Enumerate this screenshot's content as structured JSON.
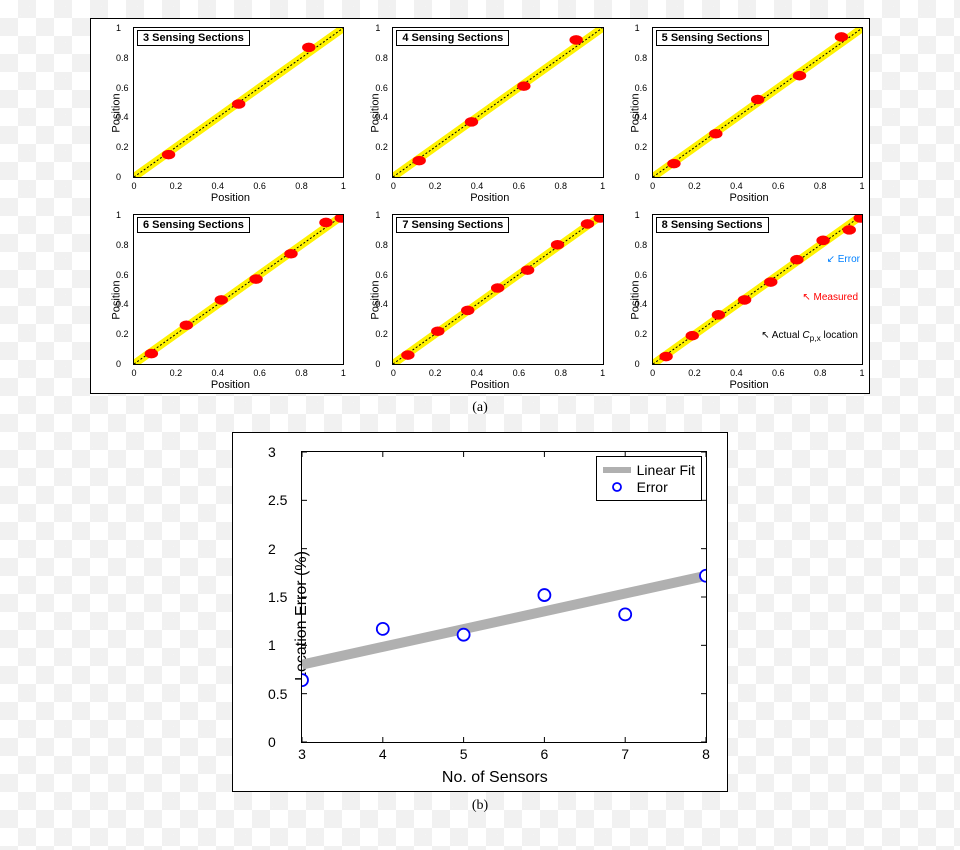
{
  "panel_a": {
    "type": "scatter-grid",
    "rows": 2,
    "cols": 3,
    "subplots": [
      {
        "title": "3 Sensing Sections",
        "points": [
          [
            0.165,
            0.15
          ],
          [
            0.5,
            0.49
          ],
          [
            0.835,
            0.87
          ]
        ]
      },
      {
        "title": "4 Sensing Sections",
        "points": [
          [
            0.125,
            0.11
          ],
          [
            0.375,
            0.37
          ],
          [
            0.625,
            0.61
          ],
          [
            0.875,
            0.92
          ]
        ]
      },
      {
        "title": "5 Sensing Sections",
        "points": [
          [
            0.1,
            0.09
          ],
          [
            0.3,
            0.29
          ],
          [
            0.5,
            0.52
          ],
          [
            0.7,
            0.68
          ],
          [
            0.9,
            0.94
          ]
        ]
      },
      {
        "title": "6 Sensing Sections",
        "points": [
          [
            0.083,
            0.07
          ],
          [
            0.25,
            0.26
          ],
          [
            0.417,
            0.43
          ],
          [
            0.583,
            0.57
          ],
          [
            0.75,
            0.74
          ],
          [
            0.917,
            0.95
          ],
          [
            0.99,
            0.98
          ]
        ]
      },
      {
        "title": "7 Sensing Sections",
        "points": [
          [
            0.071,
            0.06
          ],
          [
            0.214,
            0.22
          ],
          [
            0.357,
            0.36
          ],
          [
            0.5,
            0.51
          ],
          [
            0.643,
            0.63
          ],
          [
            0.786,
            0.8
          ],
          [
            0.929,
            0.94
          ],
          [
            0.99,
            0.98
          ]
        ]
      },
      {
        "title": "8 Sensing Sections",
        "points": [
          [
            0.0625,
            0.05
          ],
          [
            0.1875,
            0.19
          ],
          [
            0.3125,
            0.33
          ],
          [
            0.4375,
            0.43
          ],
          [
            0.5625,
            0.55
          ],
          [
            0.6875,
            0.7
          ],
          [
            0.8125,
            0.83
          ],
          [
            0.9375,
            0.9
          ],
          [
            0.99,
            0.98
          ]
        ],
        "has_annotations": true
      }
    ],
    "xlim": [
      0,
      1
    ],
    "ylim": [
      0,
      1
    ],
    "xticks": [
      0,
      0.2,
      0.4,
      0.6,
      0.8,
      1
    ],
    "yticks": [
      0,
      0.2,
      0.4,
      0.6,
      0.8,
      1
    ],
    "xlabel": "Position",
    "ylabel": "Position",
    "band_color": "#fff200",
    "band_width": 0.05,
    "line_color": "#000000",
    "marker_color": "#ff0000",
    "marker_size": 3.2,
    "errorbar_color": "#0000ff",
    "annotations": {
      "error": {
        "text": "Error",
        "color": "#0080ff"
      },
      "measured": {
        "text": "Measured",
        "color": "#ff0000"
      },
      "actual": {
        "text_prefix": "Actual ",
        "text_italic": "C",
        "text_sub": "p,x",
        "text_suffix": " location",
        "color": "#000000"
      }
    },
    "background_color": "#ffffff",
    "axis_color": "#000000",
    "tick_fontsize": 9,
    "label_fontsize": 11,
    "title_fontsize": 11
  },
  "caption_a": "(a)",
  "panel_b": {
    "type": "scatter",
    "xlabel": "No. of Sensors",
    "ylabel": "Location Error (%)",
    "xlim": [
      3,
      8
    ],
    "ylim": [
      0,
      3
    ],
    "xticks": [
      3,
      4,
      5,
      6,
      7,
      8
    ],
    "yticks": [
      0,
      0.5,
      1,
      1.5,
      2,
      2.5,
      3
    ],
    "points": [
      [
        3,
        0.64
      ],
      [
        4,
        1.17
      ],
      [
        5,
        1.11
      ],
      [
        6,
        1.52
      ],
      [
        7,
        1.32
      ],
      [
        8,
        1.72
      ]
    ],
    "fit_line": {
      "x1": 3,
      "y1": 0.8,
      "x2": 8,
      "y2": 1.72
    },
    "fit_color": "#b0b0b0",
    "fit_width": 10,
    "marker_color": "#0000ff",
    "marker_fill": "#ffffff",
    "marker_size": 6,
    "marker_stroke": 1.8,
    "legend": {
      "fit_label": "Linear Fit",
      "error_label": "Error"
    },
    "background_color": "#ffffff",
    "axis_color": "#000000",
    "tick_fontsize": 14,
    "label_fontsize": 16
  },
  "caption_b": "(b)"
}
